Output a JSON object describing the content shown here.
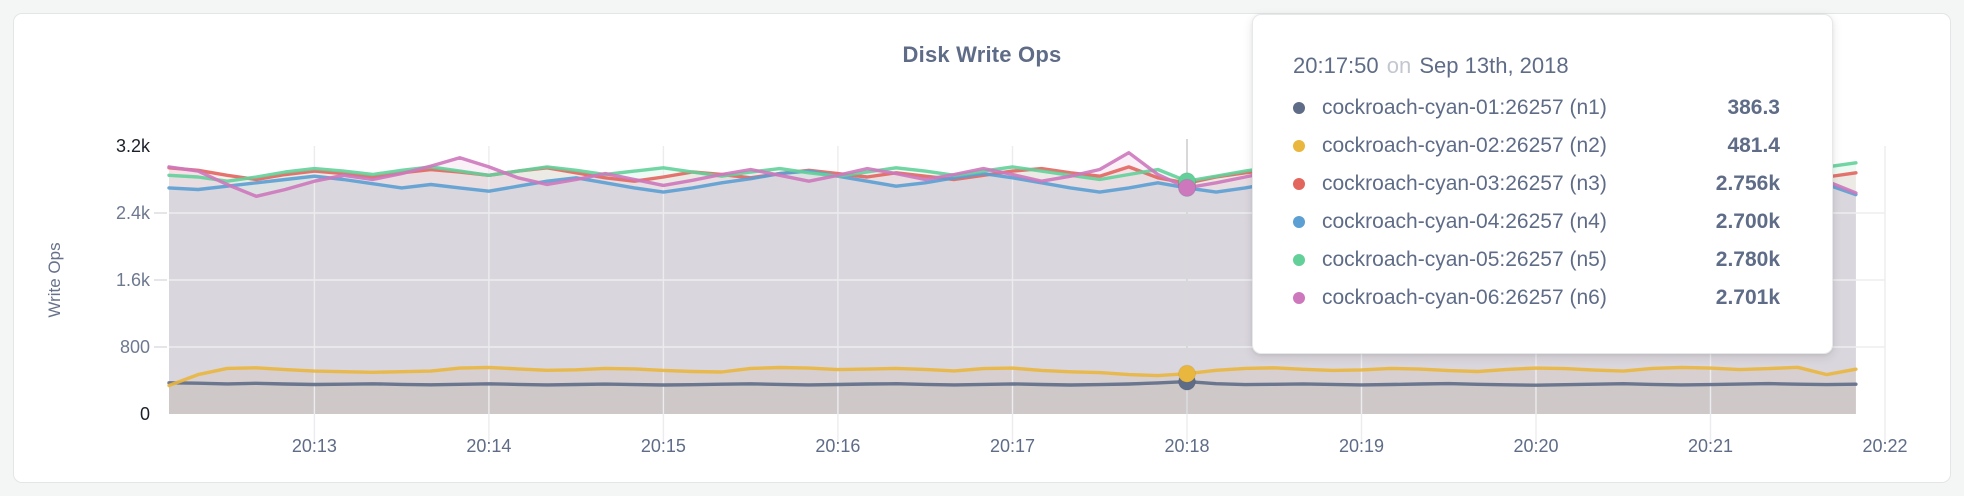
{
  "panel": {
    "title": "Disk Write Ops"
  },
  "y_axis": {
    "title": "Write Ops",
    "labels": [
      {
        "text": "3.2k",
        "value": 3200,
        "emphasis": true,
        "gridline": false
      },
      {
        "text": "2.4k",
        "value": 2400,
        "emphasis": false,
        "gridline": true
      },
      {
        "text": "1.6k",
        "value": 1600,
        "emphasis": false,
        "gridline": true
      },
      {
        "text": "800",
        "value": 800,
        "emphasis": false,
        "gridline": true
      },
      {
        "text": "0",
        "value": 0,
        "emphasis": true,
        "gridline": false
      }
    ]
  },
  "x_axis": {
    "tick_labels": [
      "20:13",
      "20:14",
      "20:15",
      "20:16",
      "20:17",
      "20:18",
      "20:19",
      "20:20",
      "20:21",
      "20:22"
    ]
  },
  "tooltip": {
    "time": "20:17:50",
    "on_word": "on",
    "date": "Sep 13th, 2018",
    "rows": [
      {
        "label": "cockroach-cyan-01:26257 (n1)",
        "value": "386.3",
        "color": "#5f6c87"
      },
      {
        "label": "cockroach-cyan-02:26257 (n2)",
        "value": "481.4",
        "color": "#e9b63e"
      },
      {
        "label": "cockroach-cyan-03:26257 (n3)",
        "value": "2.756k",
        "color": "#e2655e"
      },
      {
        "label": "cockroach-cyan-04:26257 (n4)",
        "value": "2.700k",
        "color": "#5b9fd3"
      },
      {
        "label": "cockroach-cyan-05:26257 (n5)",
        "value": "2.780k",
        "color": "#63d09a"
      },
      {
        "label": "cockroach-cyan-06:26257 (n6)",
        "value": "2.701k",
        "color": "#cd78bd"
      }
    ]
  },
  "chart_data": {
    "type": "line",
    "title": "Disk Write Ops",
    "ylabel": "Write Ops",
    "ylim": [
      0,
      3200
    ],
    "grid": true,
    "x_span_seconds": 590,
    "point_interval_seconds": 10,
    "x_tick_offsets_seconds": [
      50,
      110,
      170,
      230,
      290,
      350,
      410,
      470,
      530,
      590
    ],
    "hover": {
      "index": 35,
      "time": "20:17:50"
    },
    "series": [
      {
        "name": "cockroach-cyan-01:26257 (n1)",
        "color": "#5f6c87",
        "values": [
          372,
          368,
          360,
          366,
          358,
          352,
          356,
          361,
          354,
          349,
          355,
          361,
          354,
          348,
          352,
          357,
          351,
          346,
          350,
          356,
          361,
          353,
          347,
          352,
          358,
          362,
          354,
          348,
          353,
          359,
          352,
          346,
          351,
          358,
          371,
          386.3,
          362,
          351,
          355,
          360,
          353,
          347,
          352,
          358,
          363,
          355,
          349,
          344,
          350,
          356,
          362,
          353,
          347,
          351,
          357,
          363,
          356,
          351,
          356
        ]
      },
      {
        "name": "cockroach-cyan-02:26257 (n2)",
        "color": "#e9b63e",
        "values": [
          340,
          470,
          545,
          552,
          530,
          512,
          505,
          498,
          505,
          512,
          548,
          556,
          538,
          522,
          528,
          545,
          538,
          520,
          508,
          502,
          545,
          555,
          548,
          530,
          536,
          544,
          532,
          515,
          542,
          548,
          520,
          504,
          494,
          470,
          458,
          481.4,
          522,
          545,
          552,
          534,
          520,
          527,
          544,
          536,
          518,
          507,
          532,
          548,
          542,
          524,
          512,
          545,
          556,
          548,
          530,
          542,
          558,
          470,
          535
        ]
      },
      {
        "name": "cockroach-cyan-03:26257 (n3)",
        "color": "#e2655e",
        "values": [
          2940,
          2910,
          2850,
          2800,
          2860,
          2900,
          2870,
          2830,
          2880,
          2920,
          2890,
          2850,
          2900,
          2940,
          2880,
          2820,
          2780,
          2830,
          2890,
          2860,
          2820,
          2870,
          2910,
          2870,
          2830,
          2880,
          2840,
          2800,
          2850,
          2900,
          2930,
          2880,
          2840,
          2950,
          2820,
          2756,
          2830,
          2880,
          2920,
          2870,
          2830,
          2890,
          2850,
          2810,
          2870,
          2910,
          2860,
          2820,
          2880,
          2930,
          2890,
          2840,
          2800,
          2860,
          2910,
          2870,
          2780,
          2830,
          2880
        ]
      },
      {
        "name": "cockroach-cyan-04:26257 (n4)",
        "color": "#5b9fd3",
        "values": [
          2700,
          2680,
          2720,
          2760,
          2800,
          2840,
          2800,
          2750,
          2700,
          2740,
          2700,
          2660,
          2720,
          2780,
          2820,
          2760,
          2700,
          2650,
          2700,
          2760,
          2810,
          2870,
          2900,
          2840,
          2780,
          2720,
          2760,
          2820,
          2870,
          2820,
          2760,
          2700,
          2650,
          2700,
          2760,
          2700,
          2650,
          2700,
          2760,
          2810,
          2760,
          2700,
          2660,
          2710,
          2770,
          2820,
          2770,
          2710,
          2660,
          2720,
          2780,
          2830,
          2780,
          2720,
          2670,
          2730,
          2790,
          2740,
          2620
        ]
      },
      {
        "name": "cockroach-cyan-05:26257 (n5)",
        "color": "#63d09a",
        "values": [
          2850,
          2830,
          2780,
          2830,
          2890,
          2930,
          2900,
          2860,
          2910,
          2950,
          2900,
          2850,
          2900,
          2950,
          2910,
          2860,
          2900,
          2940,
          2890,
          2840,
          2890,
          2930,
          2880,
          2840,
          2890,
          2940,
          2900,
          2850,
          2900,
          2950,
          2900,
          2850,
          2800,
          2860,
          2920,
          2780,
          2840,
          2900,
          2950,
          2900,
          2850,
          2900,
          2940,
          2890,
          2840,
          2890,
          2940,
          2980,
          2930,
          2880,
          2930,
          2980,
          3020,
          2960,
          2900,
          2850,
          2900,
          2950,
          3000
        ]
      },
      {
        "name": "cockroach-cyan-06:26257 (n6)",
        "color": "#cd78bd",
        "values": [
          2950,
          2900,
          2740,
          2600,
          2680,
          2780,
          2850,
          2800,
          2870,
          2960,
          3060,
          2950,
          2820,
          2740,
          2800,
          2870,
          2800,
          2730,
          2790,
          2860,
          2920,
          2850,
          2780,
          2850,
          2930,
          2870,
          2800,
          2860,
          2930,
          2860,
          2780,
          2840,
          2920,
          3120,
          2860,
          2701,
          2760,
          2830,
          2900,
          2830,
          2760,
          2830,
          2900,
          2840,
          2770,
          2700,
          2640,
          2700,
          2780,
          2850,
          2780,
          2700,
          2640,
          2710,
          2790,
          2900,
          3050,
          2780,
          2640
        ]
      }
    ]
  }
}
